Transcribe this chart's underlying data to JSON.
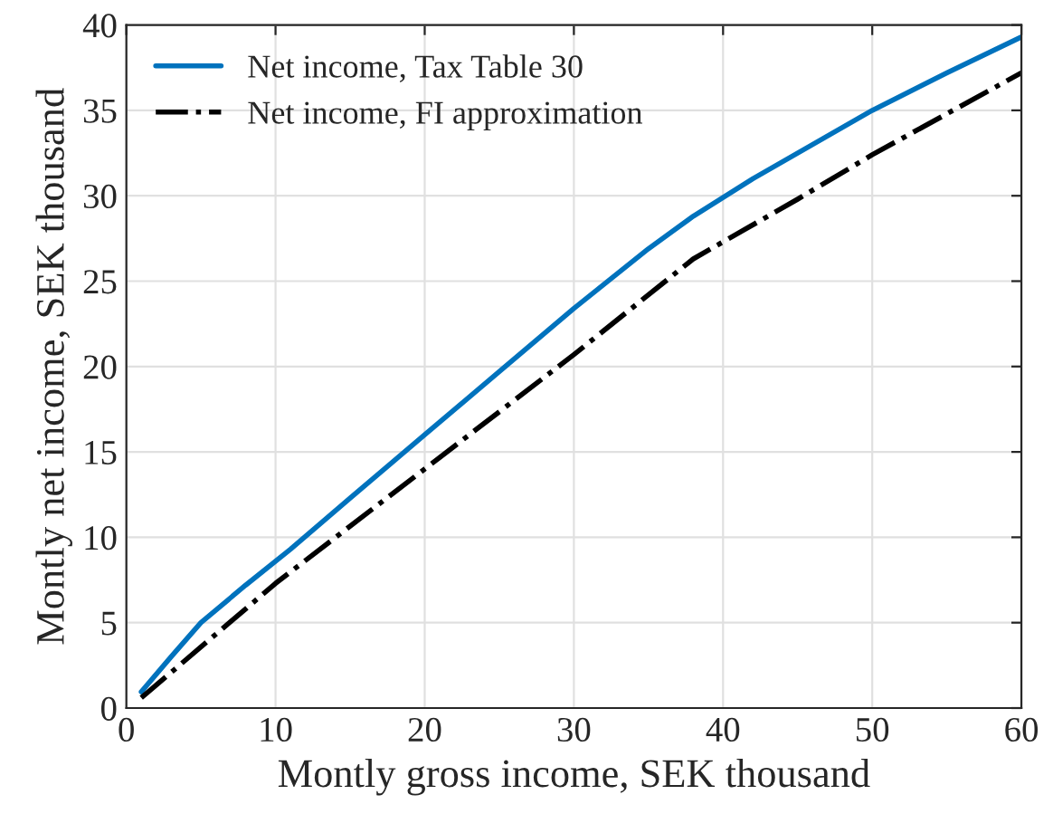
{
  "chart_data": {
    "type": "line",
    "xlabel": "Montly gross income, SEK thousand",
    "ylabel": "Montly net income, SEK thousand",
    "xlim": [
      0,
      60
    ],
    "ylim": [
      0,
      40
    ],
    "xticks": [
      0,
      10,
      20,
      30,
      40,
      50,
      60
    ],
    "yticks": [
      0,
      5,
      10,
      15,
      20,
      25,
      30,
      35,
      40
    ],
    "grid": true,
    "legend": "top left",
    "marker": "none",
    "series": [
      {
        "name": "Net income, Tax Table 30",
        "color": "#0072bd",
        "line_style": "solid",
        "x": [
          1,
          3,
          5,
          8,
          11,
          15,
          20,
          25,
          30,
          35,
          38,
          42,
          46,
          50,
          55,
          60
        ],
        "values": [
          0.95,
          3.0,
          5.0,
          7.2,
          9.3,
          12.3,
          16.0,
          19.7,
          23.4,
          26.9,
          28.8,
          31.0,
          33.0,
          35.0,
          37.2,
          39.3
        ]
      },
      {
        "name": "Net income, FI approximation",
        "color": "#000000",
        "line_style": "dashdot",
        "x": [
          1,
          10,
          20,
          30,
          38,
          45,
          50,
          55,
          60
        ],
        "values": [
          0.6,
          7.3,
          14.0,
          20.7,
          26.3,
          29.8,
          32.4,
          34.8,
          37.2
        ]
      }
    ]
  }
}
